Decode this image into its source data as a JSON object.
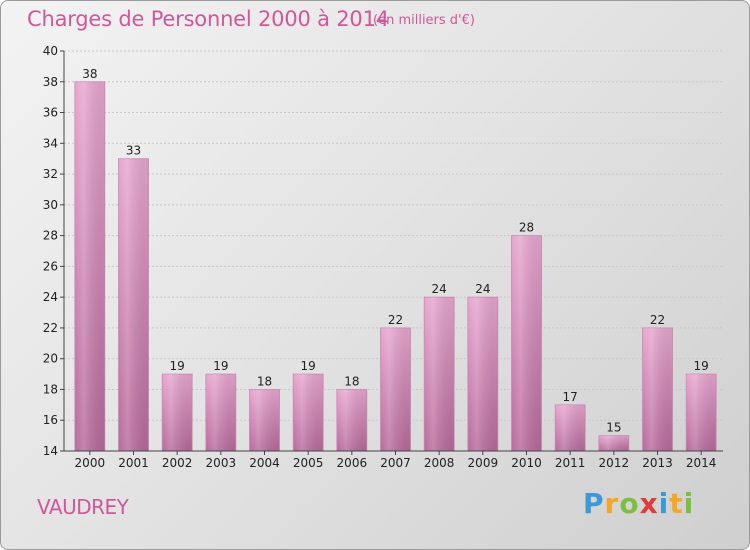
{
  "title": "Charges de Personnel 2000 à 2014",
  "subtitle": "(en milliers d'€)",
  "place": "VAUDREY",
  "logo": {
    "letters": [
      "P",
      "r",
      "o",
      "x",
      "i",
      "t",
      "i"
    ],
    "colors": [
      "#3a9ad9",
      "#f5a623",
      "#7cbf3c",
      "#e53935",
      "#3a9ad9",
      "#f5a623",
      "#7cbf3c"
    ]
  },
  "colors": {
    "accent": "#d0589a",
    "bar_top": "#e7a6cf",
    "bar_bottom": "#b76a9b",
    "axis": "#444444",
    "grid": "#c8c8c8"
  },
  "chart_data": {
    "type": "bar",
    "categories": [
      "2000",
      "2001",
      "2002",
      "2003",
      "2004",
      "2005",
      "2006",
      "2007",
      "2008",
      "2009",
      "2010",
      "2011",
      "2012",
      "2013",
      "2014"
    ],
    "values": [
      38,
      33,
      19,
      19,
      18,
      19,
      18,
      22,
      24,
      24,
      28,
      17,
      15,
      22,
      19
    ],
    "title": "Charges de Personnel 2000 à 2014",
    "ylabel": "",
    "xlabel": "",
    "ylim": [
      14,
      40
    ],
    "yticks": [
      14,
      16,
      18,
      20,
      22,
      24,
      26,
      28,
      30,
      32,
      34,
      36,
      38,
      40
    ],
    "grid": true
  }
}
